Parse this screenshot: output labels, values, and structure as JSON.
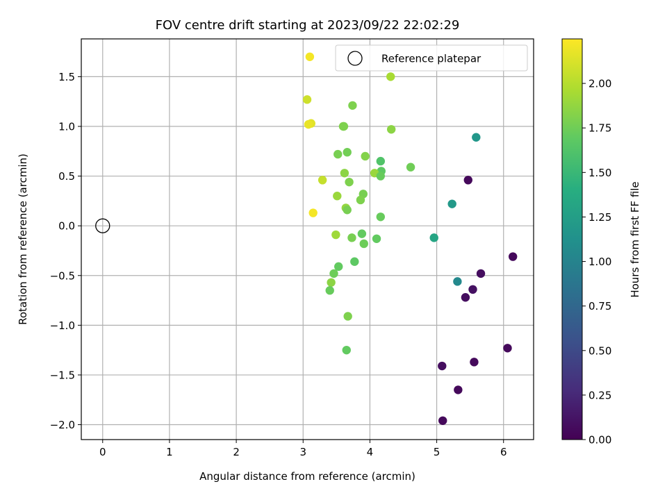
{
  "chart_data": {
    "type": "scatter",
    "title": "FOV centre drift starting at 2023/09/22 22:02:29",
    "xlabel": "Angular distance from reference (arcmin)",
    "ylabel": "Rotation from reference (arcmin)",
    "xlim": [
      -0.32,
      6.45
    ],
    "ylim": [
      -2.15,
      1.88
    ],
    "xticks": [
      0,
      1,
      2,
      3,
      4,
      5,
      6
    ],
    "yticks": [
      -2.0,
      -1.5,
      -1.0,
      -0.5,
      0.0,
      0.5,
      1.0,
      1.5
    ],
    "xtick_labels": [
      "0",
      "1",
      "2",
      "3",
      "4",
      "5",
      "6"
    ],
    "ytick_labels": [
      "−2.0",
      "−1.5",
      "−1.0",
      "−0.5",
      "0.0",
      "0.5",
      "1.0",
      "1.5"
    ],
    "grid": true,
    "legend": {
      "position": "top-right",
      "entries": [
        "Reference platepar"
      ]
    },
    "reference_point": {
      "x": 0.0,
      "y": 0.0
    },
    "colorbar": {
      "label": "Hours from first FF file",
      "range": [
        0.0,
        2.25
      ],
      "ticks": [
        0.0,
        0.25,
        0.5,
        0.75,
        1.0,
        1.25,
        1.5,
        1.75,
        2.0
      ],
      "tick_labels": [
        "0.00",
        "0.25",
        "0.50",
        "0.75",
        "1.00",
        "1.25",
        "1.50",
        "1.75",
        "2.00"
      ],
      "colormap": "viridis"
    },
    "points": [
      {
        "x": 3.1,
        "y": 1.7,
        "c": 2.22
      },
      {
        "x": 4.31,
        "y": 1.5,
        "c": 1.95
      },
      {
        "x": 3.06,
        "y": 1.27,
        "c": 2.08
      },
      {
        "x": 3.74,
        "y": 1.21,
        "c": 1.8
      },
      {
        "x": 3.12,
        "y": 1.03,
        "c": 2.15
      },
      {
        "x": 3.08,
        "y": 1.02,
        "c": 2.18
      },
      {
        "x": 3.6,
        "y": 1.0,
        "c": 1.82
      },
      {
        "x": 3.61,
        "y": 1.0,
        "c": 1.8
      },
      {
        "x": 4.32,
        "y": 0.97,
        "c": 1.85
      },
      {
        "x": 5.59,
        "y": 0.89,
        "c": 1.18
      },
      {
        "x": 3.52,
        "y": 0.72,
        "c": 1.78
      },
      {
        "x": 3.66,
        "y": 0.74,
        "c": 1.76
      },
      {
        "x": 3.93,
        "y": 0.7,
        "c": 1.82
      },
      {
        "x": 4.16,
        "y": 0.65,
        "c": 1.62
      },
      {
        "x": 4.61,
        "y": 0.59,
        "c": 1.75
      },
      {
        "x": 4.17,
        "y": 0.55,
        "c": 1.68
      },
      {
        "x": 3.62,
        "y": 0.53,
        "c": 1.85
      },
      {
        "x": 4.07,
        "y": 0.53,
        "c": 1.9
      },
      {
        "x": 4.16,
        "y": 0.5,
        "c": 1.72
      },
      {
        "x": 3.29,
        "y": 0.46,
        "c": 2.05
      },
      {
        "x": 3.69,
        "y": 0.44,
        "c": 1.8
      },
      {
        "x": 5.47,
        "y": 0.46,
        "c": 0.05
      },
      {
        "x": 3.9,
        "y": 0.32,
        "c": 1.78
      },
      {
        "x": 3.51,
        "y": 0.3,
        "c": 1.9
      },
      {
        "x": 3.86,
        "y": 0.26,
        "c": 1.8
      },
      {
        "x": 5.23,
        "y": 0.22,
        "c": 1.2
      },
      {
        "x": 3.64,
        "y": 0.18,
        "c": 1.88
      },
      {
        "x": 3.66,
        "y": 0.16,
        "c": 1.78
      },
      {
        "x": 3.15,
        "y": 0.13,
        "c": 2.22
      },
      {
        "x": 4.16,
        "y": 0.09,
        "c": 1.72
      },
      {
        "x": 3.88,
        "y": -0.08,
        "c": 1.7
      },
      {
        "x": 3.49,
        "y": -0.09,
        "c": 1.92
      },
      {
        "x": 3.73,
        "y": -0.12,
        "c": 1.78
      },
      {
        "x": 4.1,
        "y": -0.13,
        "c": 1.7
      },
      {
        "x": 4.96,
        "y": -0.12,
        "c": 1.32
      },
      {
        "x": 3.91,
        "y": -0.18,
        "c": 1.74
      },
      {
        "x": 6.14,
        "y": -0.31,
        "c": 0.05
      },
      {
        "x": 3.77,
        "y": -0.36,
        "c": 1.68
      },
      {
        "x": 3.53,
        "y": -0.41,
        "c": 1.7
      },
      {
        "x": 3.46,
        "y": -0.48,
        "c": 1.74
      },
      {
        "x": 5.66,
        "y": -0.48,
        "c": 0.08
      },
      {
        "x": 3.42,
        "y": -0.57,
        "c": 1.85
      },
      {
        "x": 5.31,
        "y": -0.56,
        "c": 1.05
      },
      {
        "x": 3.4,
        "y": -0.65,
        "c": 1.72
      },
      {
        "x": 5.54,
        "y": -0.64,
        "c": 0.1
      },
      {
        "x": 5.43,
        "y": -0.72,
        "c": 0.08
      },
      {
        "x": 3.67,
        "y": -0.91,
        "c": 1.8
      },
      {
        "x": 6.06,
        "y": -1.23,
        "c": 0.05
      },
      {
        "x": 3.65,
        "y": -1.25,
        "c": 1.7
      },
      {
        "x": 5.56,
        "y": -1.37,
        "c": 0.06
      },
      {
        "x": 5.08,
        "y": -1.41,
        "c": 0.08
      },
      {
        "x": 5.32,
        "y": -1.65,
        "c": 0.05
      },
      {
        "x": 5.09,
        "y": -1.96,
        "c": 0.05
      }
    ]
  }
}
